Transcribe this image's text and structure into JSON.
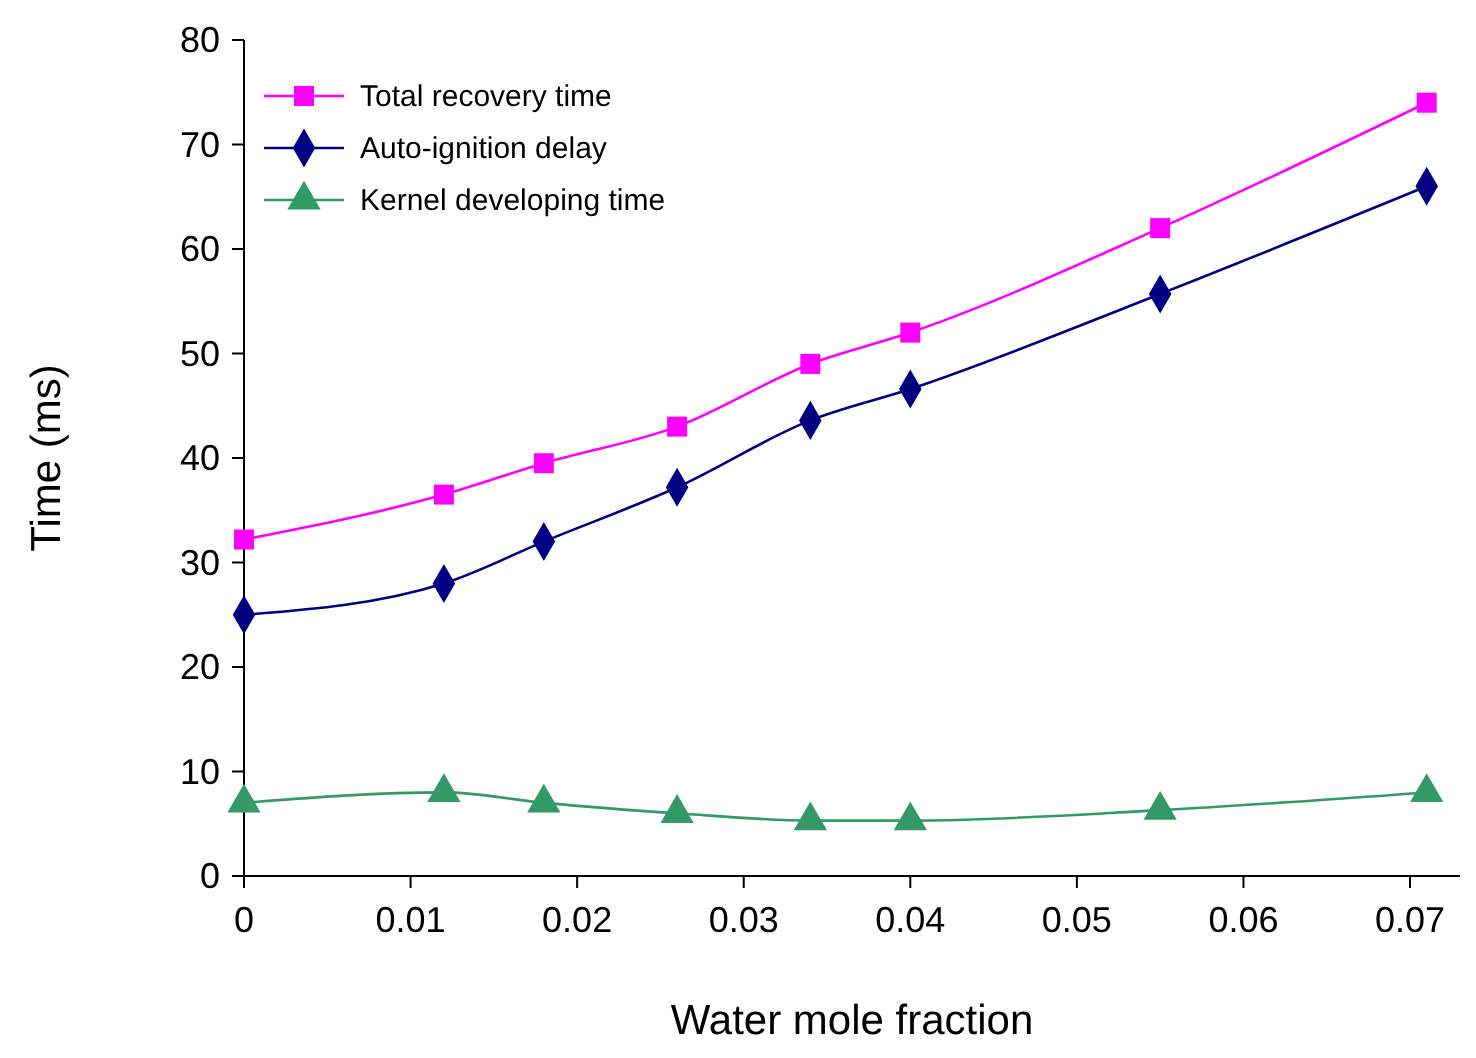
{
  "chart_data": {
    "type": "line",
    "xlabel": "Water mole fraction",
    "ylabel": "Time (ms)",
    "x": [
      0,
      0.012,
      0.018,
      0.026,
      0.034,
      0.04,
      0.055,
      0.071
    ],
    "xlim": [
      0,
      0.073
    ],
    "xticks": [
      0,
      0.01,
      0.02,
      0.03,
      0.04,
      0.05,
      0.06,
      0.07
    ],
    "ylim": [
      0,
      80
    ],
    "yticks": [
      0,
      10,
      20,
      30,
      40,
      50,
      60,
      70,
      80
    ],
    "grid": false,
    "legend": "top left",
    "series": [
      {
        "name": "Total recovery time",
        "color": "#ff00ff",
        "marker": "square",
        "values": [
          32.2,
          36.5,
          39.5,
          43,
          49,
          52,
          62,
          74
        ]
      },
      {
        "name": "Auto-ignition delay",
        "color": "#000080",
        "marker": "diamond",
        "values": [
          25,
          28,
          32,
          37.2,
          43.6,
          46.6,
          55.7,
          66
        ]
      },
      {
        "name": "Kernel developing time",
        "color": "#339966",
        "marker": "triangle",
        "values": [
          7,
          8,
          7,
          6,
          5.3,
          5.3,
          6.3,
          8
        ]
      }
    ]
  }
}
